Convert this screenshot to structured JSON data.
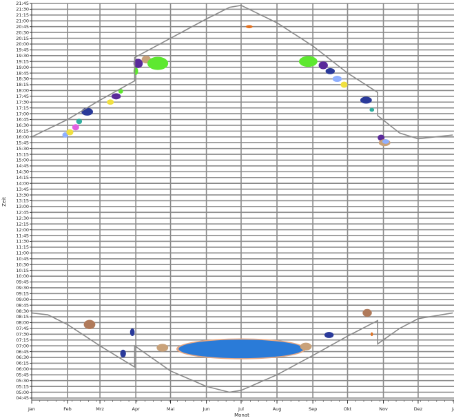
{
  "chart_data": {
    "type": "scatter",
    "title": "",
    "xlabel": "Monat",
    "ylabel": "Zeit",
    "x_ticks": [
      "Jan",
      "Feb",
      "Mrz",
      "Apr",
      "Mai",
      "Jun",
      "Jul",
      "Aug",
      "Sep",
      "Okt",
      "Nov",
      "Dez",
      "Ja"
    ],
    "y_range": [
      "04:45",
      "21:45"
    ],
    "y_tick_step_minutes": 15,
    "grid": true,
    "colors": {
      "grid": "#8a8a8a",
      "curve": "#8a8a8a",
      "blue_main": "#2a7bd8",
      "blue_outline": "#e8a882",
      "green": "#5ee830",
      "purple": "#5a2a9a",
      "navy": "#2a3a9a",
      "brown": "#b07a5a",
      "tan": "#c9a27a",
      "orange": "#e07020",
      "yellow": "#f0e040",
      "pink": "#e060e0",
      "teal": "#30b0a0",
      "lightblue": "#90b0ff",
      "black": "#111111"
    },
    "curve_sunset": [
      {
        "x": "01-01",
        "y": "16:00"
      },
      {
        "x": "02-01",
        "y": "16:45"
      },
      {
        "x": "03-01",
        "y": "17:35"
      },
      {
        "x": "03-31",
        "y": "18:25"
      },
      {
        "x": "03-31",
        "y": "19:25"
      },
      {
        "x": "05-01",
        "y": "20:15"
      },
      {
        "x": "06-01",
        "y": "21:05"
      },
      {
        "x": "06-21",
        "y": "21:35"
      },
      {
        "x": "07-01",
        "y": "21:40"
      },
      {
        "x": "08-01",
        "y": "20:55"
      },
      {
        "x": "09-01",
        "y": "19:55"
      },
      {
        "x": "10-01",
        "y": "18:45"
      },
      {
        "x": "10-27",
        "y": "17:55"
      },
      {
        "x": "10-27",
        "y": "16:55"
      },
      {
        "x": "11-15",
        "y": "16:10"
      },
      {
        "x": "12-01",
        "y": "15:55"
      },
      {
        "x": "12-31",
        "y": "16:05"
      }
    ],
    "curve_sunrise": [
      {
        "x": "01-01",
        "y": "08:25"
      },
      {
        "x": "01-15",
        "y": "08:20"
      },
      {
        "x": "02-01",
        "y": "07:55"
      },
      {
        "x": "03-01",
        "y": "07:00"
      },
      {
        "x": "03-31",
        "y": "06:05"
      },
      {
        "x": "03-31",
        "y": "07:00"
      },
      {
        "x": "05-01",
        "y": "05:55"
      },
      {
        "x": "06-01",
        "y": "05:15"
      },
      {
        "x": "06-21",
        "y": "05:00"
      },
      {
        "x": "07-01",
        "y": "05:05"
      },
      {
        "x": "08-01",
        "y": "05:45"
      },
      {
        "x": "09-01",
        "y": "06:35"
      },
      {
        "x": "10-01",
        "y": "07:25"
      },
      {
        "x": "10-27",
        "y": "08:05"
      },
      {
        "x": "10-27",
        "y": "07:05"
      },
      {
        "x": "11-15",
        "y": "07:45"
      },
      {
        "x": "12-01",
        "y": "08:10"
      },
      {
        "x": "12-31",
        "y": "08:25"
      }
    ],
    "blobs": [
      {
        "x": "01-30",
        "y": "16:05",
        "rx_days": 2.5,
        "ry_min": 7,
        "color": "lightblue"
      },
      {
        "x": "02-03",
        "y": "16:12",
        "rx_days": 3,
        "ry_min": 8,
        "color": "yellow"
      },
      {
        "x": "02-08",
        "y": "16:25",
        "rx_days": 3,
        "ry_min": 8,
        "color": "pink"
      },
      {
        "x": "02-11",
        "y": "16:40",
        "rx_days": 2.5,
        "ry_min": 7,
        "color": "teal"
      },
      {
        "x": "02-18",
        "y": "17:05",
        "rx_days": 5,
        "ry_min": 10,
        "color": "navy"
      },
      {
        "x": "03-10",
        "y": "17:30",
        "rx_days": 3,
        "ry_min": 7,
        "color": "yellow"
      },
      {
        "x": "03-15",
        "y": "17:45",
        "rx_days": 4,
        "ry_min": 8,
        "color": "purple"
      },
      {
        "x": "03-19",
        "y": "17:58",
        "rx_days": 2,
        "ry_min": 6,
        "color": "green"
      },
      {
        "x": "04-01",
        "y": "18:50",
        "rx_days": 2,
        "ry_min": 10,
        "color": "green"
      },
      {
        "x": "04-03",
        "y": "19:10",
        "rx_days": 4,
        "ry_min": 12,
        "color": "purple"
      },
      {
        "x": "04-10",
        "y": "19:20",
        "rx_days": 4,
        "ry_min": 10,
        "color": "tan"
      },
      {
        "x": "04-20",
        "y": "19:10",
        "rx_days": 9,
        "ry_min": 17,
        "color": "green"
      },
      {
        "x": "07-08",
        "y": "20:45",
        "rx_days": 3,
        "ry_min": 4,
        "color": "orange"
      },
      {
        "x": "08-28",
        "y": "19:15",
        "rx_days": 8,
        "ry_min": 14,
        "color": "green"
      },
      {
        "x": "09-10",
        "y": "19:05",
        "rx_days": 4,
        "ry_min": 10,
        "color": "purple"
      },
      {
        "x": "09-16",
        "y": "18:50",
        "rx_days": 4,
        "ry_min": 8,
        "color": "navy"
      },
      {
        "x": "09-22",
        "y": "18:30",
        "rx_days": 4,
        "ry_min": 8,
        "color": "lightblue"
      },
      {
        "x": "09-28",
        "y": "18:15",
        "rx_days": 3,
        "ry_min": 8,
        "color": "yellow"
      },
      {
        "x": "10-17",
        "y": "17:35",
        "rx_days": 5,
        "ry_min": 9,
        "color": "navy"
      },
      {
        "x": "10-22",
        "y": "17:10",
        "rx_days": 2,
        "ry_min": 5,
        "color": "teal"
      },
      {
        "x": "10-30",
        "y": "15:58",
        "rx_days": 3,
        "ry_min": 8,
        "color": "purple"
      },
      {
        "x": "11-02",
        "y": "15:45",
        "rx_days": 5,
        "ry_min": 9,
        "color": "tan"
      },
      {
        "x": "11-03",
        "y": "15:48",
        "rx_days": 3,
        "ry_min": 6,
        "color": "lightblue"
      },
      {
        "x": "02-20",
        "y": "07:55",
        "rx_days": 5,
        "ry_min": 12,
        "color": "brown"
      },
      {
        "x": "03-29",
        "y": "07:35",
        "rx_days": 2,
        "ry_min": 10,
        "color": "navy"
      },
      {
        "x": "03-21",
        "y": "06:40",
        "rx_days": 2.5,
        "ry_min": 10,
        "color": "navy"
      },
      {
        "x": "04-24",
        "y": "06:55",
        "rx_days": 5,
        "ry_min": 10,
        "color": "tan"
      },
      {
        "x": "07-01",
        "y": "06:52",
        "rx_days": 56,
        "ry_min": 27,
        "color": "blue_outline"
      },
      {
        "x": "07-01",
        "y": "06:52",
        "rx_days": 54,
        "ry_min": 24,
        "color": "blue_main"
      },
      {
        "x": "08-26",
        "y": "06:58",
        "rx_days": 5,
        "ry_min": 10,
        "color": "tan"
      },
      {
        "x": "09-15",
        "y": "07:28",
        "rx_days": 4,
        "ry_min": 8,
        "color": "navy"
      },
      {
        "x": "10-18",
        "y": "08:25",
        "rx_days": 4,
        "ry_min": 10,
        "color": "brown"
      },
      {
        "x": "10-22",
        "y": "07:30",
        "rx_days": 1,
        "ry_min": 5,
        "color": "orange"
      }
    ]
  }
}
